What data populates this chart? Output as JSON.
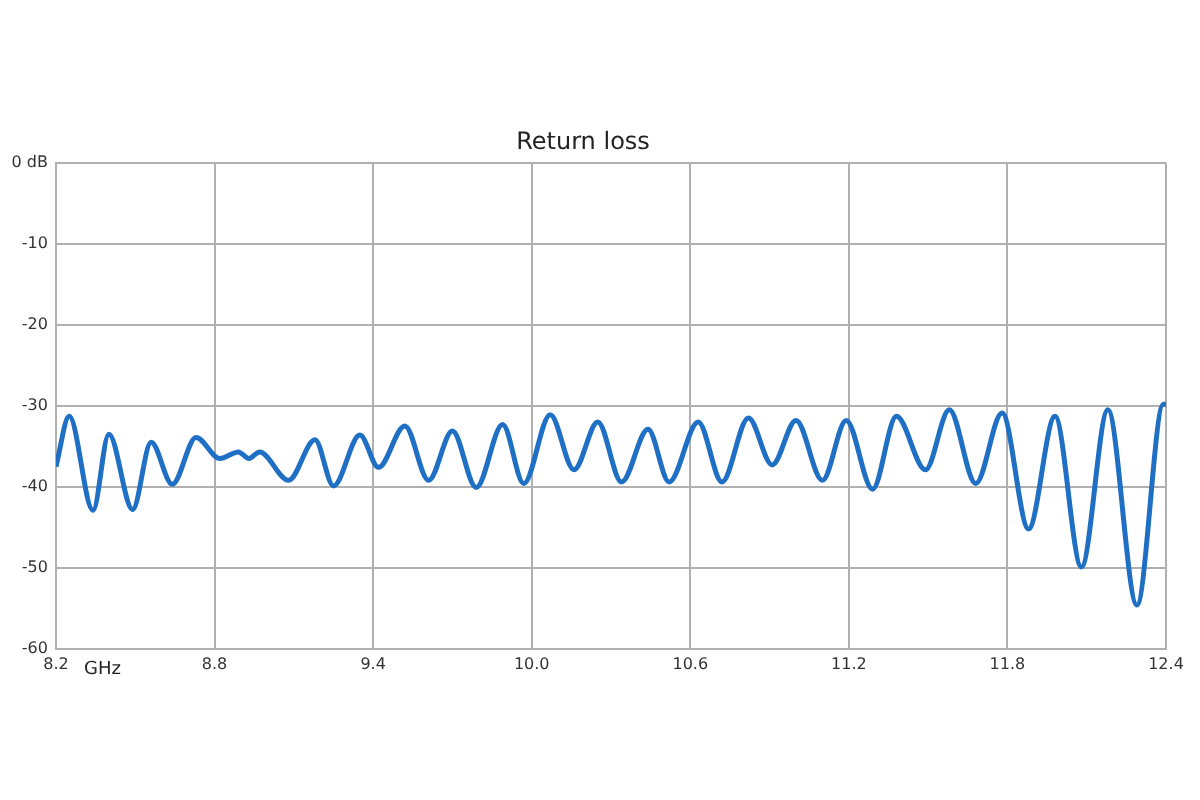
{
  "chart_data": {
    "type": "line",
    "title": "Return loss",
    "xlabel": "GHz",
    "x": [
      8.2,
      8.25,
      8.34,
      8.4,
      8.49,
      8.56,
      8.64,
      8.73,
      8.82,
      8.89,
      8.93,
      8.97,
      9.08,
      9.18,
      9.25,
      9.35,
      9.42,
      9.52,
      9.61,
      9.7,
      9.79,
      9.89,
      9.97,
      10.07,
      10.16,
      10.25,
      10.34,
      10.44,
      10.52,
      10.63,
      10.72,
      10.82,
      10.91,
      11.0,
      11.1,
      11.19,
      11.29,
      11.38,
      11.49,
      11.58,
      11.68,
      11.78,
      11.88,
      11.98,
      12.08,
      12.18,
      12.29,
      12.39,
      12.4
    ],
    "series": [
      {
        "color": "#1f6fc5",
        "values": [
          -37.5,
          -31.3,
          -42.9,
          -33.5,
          -42.8,
          -34.5,
          -39.7,
          -33.9,
          -36.5,
          -35.7,
          -36.5,
          -35.7,
          -39.2,
          -34.2,
          -39.9,
          -33.6,
          -37.6,
          -32.5,
          -39.2,
          -33.1,
          -40.1,
          -32.3,
          -39.6,
          -31.1,
          -37.9,
          -32.0,
          -39.4,
          -32.9,
          -39.4,
          -32.0,
          -39.4,
          -31.5,
          -37.3,
          -31.8,
          -39.2,
          -31.8,
          -40.3,
          -31.3,
          -37.9,
          -30.5,
          -39.6,
          -30.9,
          -45.2,
          -31.3,
          -49.9,
          -30.5,
          -54.6,
          -29.8,
          -29.8
        ]
      }
    ],
    "xlim": [
      8.2,
      12.4
    ],
    "xticks": [
      8.2,
      8.8,
      9.4,
      {
        "value": 10,
        "label": "10.0"
      },
      10.6,
      11.2,
      11.8,
      12.4
    ],
    "ylim": [
      -60,
      0
    ],
    "yticks": [
      {
        "value": 0,
        "label": "0 dB"
      },
      -10,
      -20,
      -30,
      -40,
      -50,
      -60
    ],
    "grid": true,
    "legend": false,
    "marker": "none",
    "line_style": "solid"
  }
}
